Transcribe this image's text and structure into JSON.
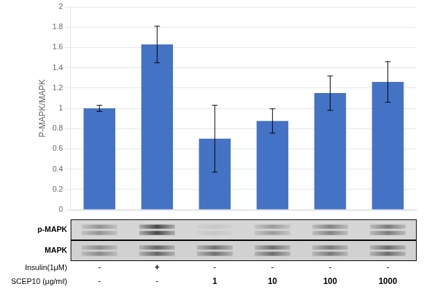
{
  "chart_data": {
    "type": "bar",
    "ylabel": "P-MAPK/MAPK",
    "categories": [
      null,
      null,
      null,
      null,
      null,
      null
    ],
    "values": [
      1.0,
      1.63,
      0.7,
      0.875,
      1.15,
      1.26
    ],
    "errors": [
      0.03,
      0.18,
      0.33,
      0.12,
      0.17,
      0.2
    ],
    "color": "#4472C4",
    "ylim": [
      0,
      2.0
    ],
    "yticks": [
      0,
      0.2,
      0.4,
      0.6,
      0.8,
      1,
      1.2,
      1.4,
      1.6,
      1.8,
      2
    ],
    "grid": true,
    "blot_rows": [
      {
        "name": "p-MAPK",
        "values": [
          0.4,
          0.85,
          0.1,
          0.35,
          0.5,
          0.55
        ]
      },
      {
        "name": "MAPK",
        "values": [
          0.42,
          0.65,
          0.58,
          0.6,
          0.52,
          0.6
        ]
      }
    ],
    "label_rows": [
      {
        "name": "Insulin(1μM)",
        "values": [
          "-",
          "+",
          "-",
          "-",
          "-",
          "-"
        ]
      },
      {
        "name": "SCEP10 (μg/mℓ)",
        "values": [
          "-",
          "-",
          "1",
          "10",
          "100",
          "1000"
        ]
      }
    ]
  }
}
